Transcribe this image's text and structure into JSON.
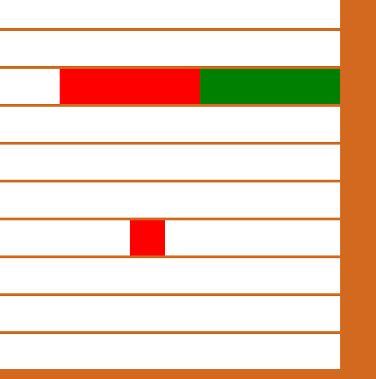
{
  "colors": {
    "frame": "#D2691E",
    "lane": "#FFFFFF",
    "red": "#FF0000",
    "green": "#008000"
  },
  "board": {
    "rows": 10,
    "cols": 9.7,
    "blocks": [
      {
        "row": 2,
        "col": 1.7,
        "span": 4,
        "color": "red"
      },
      {
        "row": 2,
        "col": 5.7,
        "span": 4,
        "color": "green"
      },
      {
        "row": 6,
        "col": 3.7,
        "span": 1,
        "color": "red"
      }
    ]
  }
}
